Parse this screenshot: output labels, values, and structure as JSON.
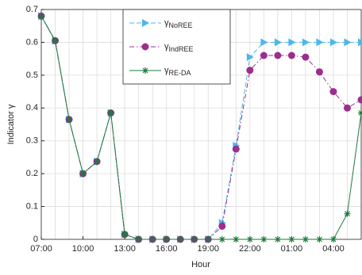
{
  "chart_data": {
    "type": "line",
    "xlabel": "Hour",
    "ylabel": "Indicator γ",
    "categories": [
      "07:00",
      null,
      null,
      "10:00",
      null,
      null,
      "13:00",
      null,
      null,
      "16:00",
      null,
      null,
      "19:00",
      null,
      null,
      "22:00",
      null,
      null,
      "01:00",
      null,
      null,
      "04:00",
      null,
      null
    ],
    "ylim": [
      0,
      0.7
    ],
    "yticks": [
      0,
      0.1,
      0.2,
      0.3,
      0.4,
      0.5,
      0.6,
      0.7
    ],
    "grid": true,
    "legend": "upper center",
    "series": [
      {
        "name": "γNoREE",
        "color": "#4db8e8",
        "marker": "triangle",
        "dash": "dashed",
        "values": [
          0.68,
          0.605,
          0.365,
          0.2,
          0.237,
          0.385,
          0.015,
          0,
          0,
          0,
          0,
          0,
          0,
          0.05,
          0.285,
          0.555,
          0.6,
          0.6,
          0.6,
          0.6,
          0.6,
          0.6,
          0.6,
          0.6
        ]
      },
      {
        "name": "γIndREE",
        "color": "#9b2e8f",
        "marker": "circle",
        "dash": "dashdot",
        "values": [
          0.68,
          0.605,
          0.365,
          0.2,
          0.237,
          0.385,
          0.015,
          0,
          0,
          0,
          0,
          0,
          0,
          0.04,
          0.275,
          0.515,
          0.56,
          0.56,
          0.56,
          0.555,
          0.51,
          0.45,
          0.4,
          0.425
        ]
      },
      {
        "name": "γRE-DA",
        "color": "#1e7a3c",
        "marker": "star",
        "dash": "solid",
        "values": [
          0.68,
          0.605,
          0.365,
          0.2,
          0.237,
          0.385,
          0.015,
          0,
          0,
          0,
          0,
          0,
          0,
          0,
          0,
          0,
          0,
          0,
          0,
          0,
          0,
          0,
          0.078,
          0.385
        ]
      }
    ]
  }
}
